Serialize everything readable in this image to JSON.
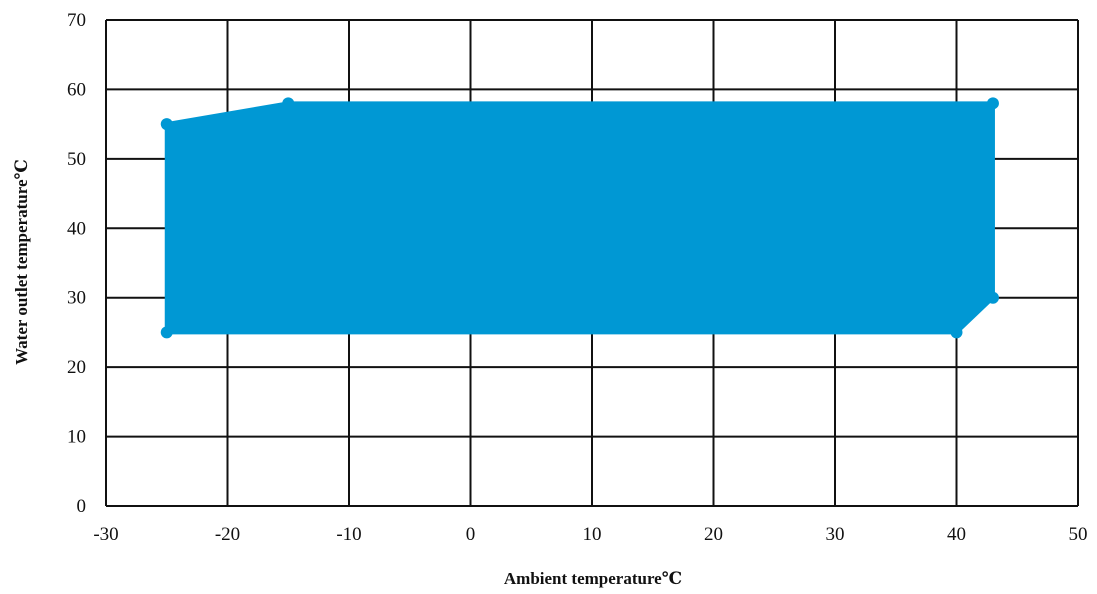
{
  "chart_data": {
    "type": "area",
    "xlabel": "Ambient temperature℃",
    "ylabel": "Water outlet temperature℃",
    "xlim": [
      -30,
      50
    ],
    "ylim": [
      0,
      70
    ],
    "xticks": [
      -30,
      -20,
      -10,
      0,
      10,
      20,
      30,
      40,
      50
    ],
    "yticks": [
      0,
      10,
      20,
      30,
      40,
      50,
      60,
      70
    ],
    "grid": true,
    "series": [
      {
        "points": [
          {
            "x": -25,
            "y": 55
          },
          {
            "x": -15,
            "y": 58
          },
          {
            "x": 43,
            "y": 58
          },
          {
            "x": 43,
            "y": 30
          },
          {
            "x": 40,
            "y": 25
          },
          {
            "x": -25,
            "y": 25
          }
        ],
        "color": "#0098d4"
      }
    ]
  }
}
